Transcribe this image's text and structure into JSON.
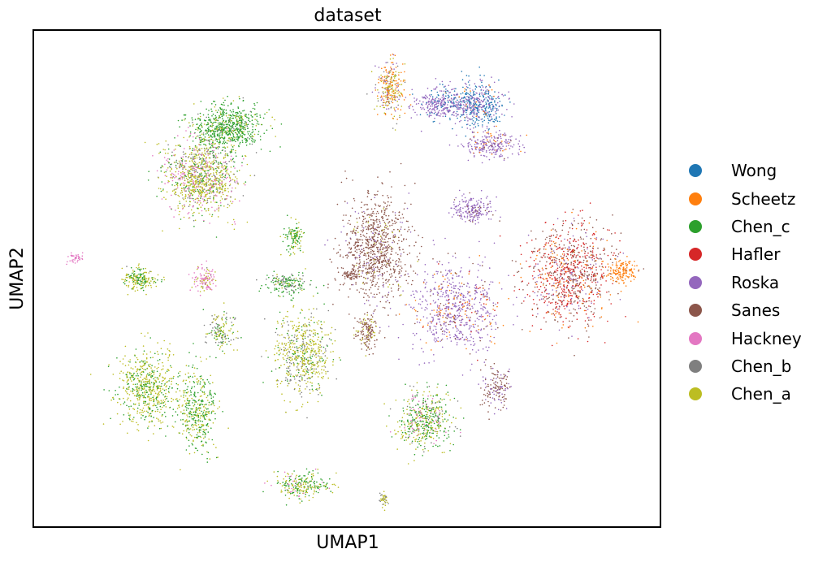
{
  "chart_data": {
    "type": "scatter",
    "title": "dataset",
    "xlabel": "UMAP1",
    "ylabel": "UMAP2",
    "ticks": "none",
    "grid": false,
    "legend": {
      "placement": "right"
    },
    "series": [
      {
        "name": "Wong",
        "color": "#1f77b4"
      },
      {
        "name": "Scheetz",
        "color": "#ff7f0e"
      },
      {
        "name": "Chen_c",
        "color": "#2ca02c"
      },
      {
        "name": "Hafler",
        "color": "#d62728"
      },
      {
        "name": "Roska",
        "color": "#9467bd"
      },
      {
        "name": "Sanes",
        "color": "#8c564b"
      },
      {
        "name": "Hackney",
        "color": "#e377c2"
      },
      {
        "name": "Chen_b",
        "color": "#7f7f7f"
      },
      {
        "name": "Chen_a",
        "color": "#bcbd22"
      }
    ]
  }
}
